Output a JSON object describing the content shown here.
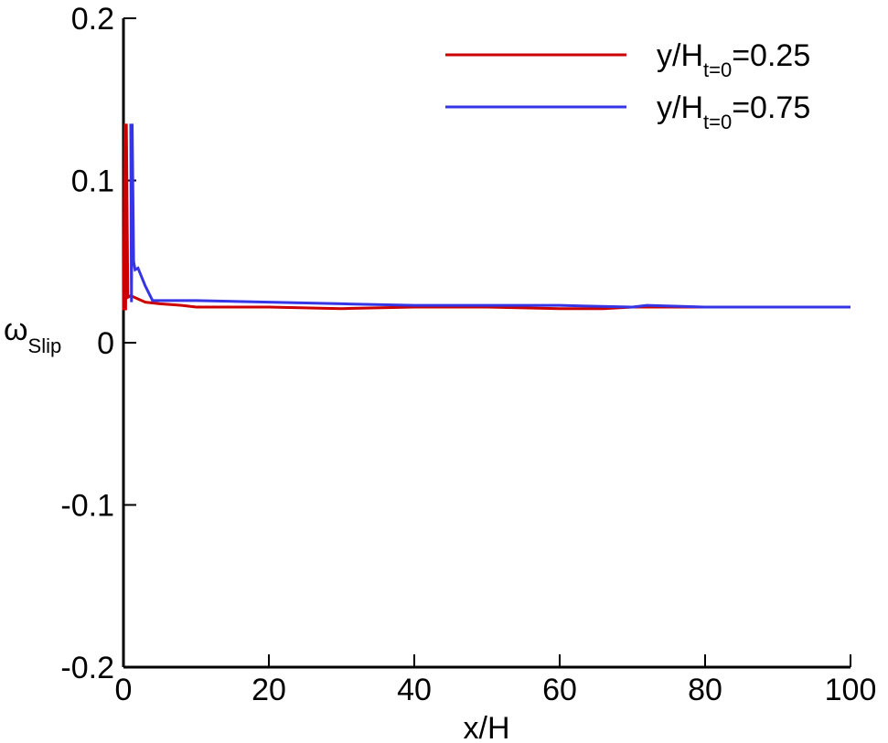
{
  "chart_data": {
    "type": "line",
    "xlabel": "x/H",
    "ylabel": [
      "ω",
      "Slip"
    ],
    "xlim": [
      0,
      100
    ],
    "xticks": [
      0,
      20,
      40,
      60,
      80,
      100
    ],
    "ylim": [
      -0.2,
      0.2
    ],
    "yticks": [
      -0.2,
      -0.1,
      0,
      0.1,
      0.2
    ],
    "legend": "upper right",
    "series": [
      {
        "name": [
          "y/H",
          "t=0",
          "=0.25"
        ],
        "color": "#cc0000",
        "x": [
          0,
          0.2,
          0.3,
          0.4,
          0.6,
          1,
          2,
          3,
          5,
          8,
          10,
          15,
          20,
          30,
          40,
          50,
          60,
          66,
          70,
          80,
          100
        ],
        "values": [
          0.02,
          0.135,
          0.02,
          0.135,
          0.028,
          0.029,
          0.027,
          0.025,
          0.024,
          0.023,
          0.022,
          0.022,
          0.022,
          0.021,
          0.022,
          0.022,
          0.021,
          0.021,
          0.022,
          0.022,
          0.022
        ]
      },
      {
        "name": [
          "y/H",
          "t=0",
          "=0.75"
        ],
        "color": "#3535e6",
        "x": [
          1,
          1.1,
          1.2,
          1.4,
          1.6,
          2,
          3,
          4,
          6,
          10,
          20,
          30,
          40,
          50,
          60,
          70,
          72,
          80,
          100
        ],
        "values": [
          0.135,
          0.025,
          0.135,
          0.05,
          0.045,
          0.046,
          0.035,
          0.026,
          0.026,
          0.026,
          0.025,
          0.024,
          0.023,
          0.023,
          0.023,
          0.022,
          0.023,
          0.022,
          0.022
        ]
      }
    ]
  }
}
